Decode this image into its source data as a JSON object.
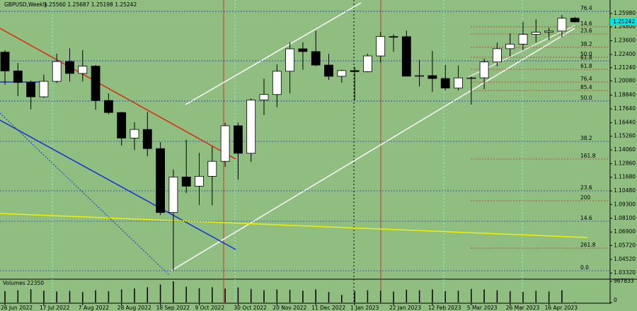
{
  "chart_data": {
    "type": "candlestick",
    "title": "GBPUSD,Weekly",
    "ohlc_label": "1.25560 1.25687 1.25198 1.25242",
    "categories": [
      "26 Jun 2022",
      null,
      null,
      "17 Jul 2022",
      null,
      null,
      "7 Aug 2022",
      null,
      null,
      "28 Aug 2022",
      null,
      null,
      "18 Sep 2022",
      null,
      null,
      "9 Oct 2022",
      null,
      null,
      "30 Oct 2022",
      null,
      null,
      "20 Nov 2022",
      null,
      null,
      "11 Dec 2022",
      null,
      null,
      "1 Jan 2023",
      null,
      null,
      "22 Jan 2023",
      null,
      null,
      "12 Feb 2023",
      null,
      null,
      "5 Mar 2023",
      null,
      null,
      "26 Mar 2023",
      null,
      null,
      "16 Apr 2023",
      null,
      null
    ],
    "open": [
      1.226,
      1.2096,
      1.1995,
      1.187,
      1.2005,
      1.2178,
      1.2074,
      1.2138,
      1.1838,
      1.1733,
      1.151,
      1.1585,
      1.1418,
      1.086,
      1.117,
      1.109,
      1.1176,
      1.1307,
      1.1617,
      1.1377,
      1.1842,
      1.189,
      1.2093,
      1.2289,
      1.2265,
      1.2147,
      1.2049,
      1.2099,
      1.209,
      1.2227,
      1.2396,
      1.2395,
      1.205,
      1.2055,
      1.203,
      1.1946,
      1.2035,
      1.2036,
      1.2174,
      1.229,
      1.233,
      1.2415,
      1.2434,
      1.2444,
      1.2556
    ],
    "high": [
      1.2276,
      1.2165,
      1.2011,
      1.2064,
      1.2246,
      1.2294,
      1.2277,
      1.2147,
      1.19,
      1.174,
      1.1648,
      1.1738,
      1.1475,
      1.1235,
      1.1495,
      1.138,
      1.1436,
      1.1645,
      1.1645,
      1.1855,
      1.2028,
      1.2153,
      1.2345,
      1.2345,
      1.2446,
      1.2245,
      1.2106,
      1.213,
      1.2246,
      1.2436,
      1.2416,
      1.2448,
      1.2193,
      1.227,
      1.2148,
      1.2144,
      1.205,
      1.2203,
      1.2343,
      1.2424,
      1.2525,
      1.2546,
      1.2474,
      1.2584,
      1.25687
    ],
    "low": [
      1.1976,
      1.1876,
      1.176,
      1.186,
      1.199,
      1.2003,
      1.2004,
      1.1757,
      1.1717,
      1.1444,
      1.1406,
      1.1351,
      1.0838,
      1.035,
      1.103,
      1.0924,
      1.0922,
      1.1258,
      1.1147,
      1.1303,
      1.1711,
      1.178,
      1.19,
      1.2106,
      1.2138,
      1.2018,
      1.1992,
      1.1841,
      1.2084,
      1.217,
      1.2263,
      1.2048,
      1.1961,
      1.1914,
      1.1927,
      1.1925,
      1.1802,
      1.1937,
      1.2137,
      1.222,
      1.2275,
      1.2345,
      1.2367,
      1.239,
      1.25198
    ],
    "close": [
      1.2096,
      1.1995,
      1.187,
      1.2005,
      1.2178,
      1.2074,
      1.2138,
      1.1838,
      1.1733,
      1.151,
      1.1585,
      1.1418,
      1.086,
      1.117,
      1.109,
      1.1176,
      1.1307,
      1.1617,
      1.1377,
      1.1842,
      1.189,
      1.2093,
      1.2289,
      1.2265,
      1.2147,
      1.2049,
      1.2099,
      1.209,
      1.2227,
      1.2396,
      1.2395,
      1.205,
      1.2055,
      1.203,
      1.1946,
      1.2035,
      1.2036,
      1.2174,
      1.229,
      1.233,
      1.2415,
      1.2434,
      1.2444,
      1.2556,
      1.25242
    ],
    "up_color": "#ffffff",
    "down_color": "#000000",
    "ylim": [
      1.0278,
      1.2715
    ],
    "yticks": [
      {
        "value": 1.2598,
        "label": "1.25980"
      },
      {
        "value": 1.248,
        "label": "1.24800"
      },
      {
        "value": 1.236,
        "label": "1.23600"
      },
      {
        "value": 1.224,
        "label": "1.22400"
      },
      {
        "value": 1.2124,
        "label": "1.21240"
      },
      {
        "value": 1.2008,
        "label": "1.20080"
      },
      {
        "value": 1.1884,
        "label": "1.18840"
      },
      {
        "value": 1.1764,
        "label": "1.17640"
      },
      {
        "value": 1.1644,
        "label": "1.16440"
      },
      {
        "value": 1.1526,
        "label": "1.15260"
      },
      {
        "value": 1.1406,
        "label": "1.14060"
      },
      {
        "value": 1.1286,
        "label": "1.12860"
      },
      {
        "value": 1.1168,
        "label": "1.11680"
      },
      {
        "value": 1.1048,
        "label": "1.10480"
      },
      {
        "value": 1.093,
        "label": "1.09300"
      },
      {
        "value": 1.081,
        "label": "1.08100"
      },
      {
        "value": 1.069,
        "label": "1.06900"
      },
      {
        "value": 1.0572,
        "label": "1.05720"
      },
      {
        "value": 1.0452,
        "label": "1.04520"
      },
      {
        "value": 1.0332,
        "label": "1.03320"
      }
    ],
    "last_price": {
      "value": 1.25242,
      "label": "1.25242"
    },
    "levels": [
      {
        "text": "76.4",
        "level": 1.2616,
        "color": "#1f3fbf"
      },
      {
        "text": "14.6",
        "level": 1.2481,
        "color": "#c0392b"
      },
      {
        "text": "23.6",
        "level": 1.2419,
        "color": "#c0392b"
      },
      {
        "text": "38.2",
        "level": 1.2302,
        "color": "#c0392b"
      },
      {
        "text": "50.0",
        "level": 1.2215,
        "color": "#c0392b"
      },
      {
        "text": "61.8",
        "level": 1.2184,
        "color": "#1f3fbf"
      },
      {
        "text": "61.8",
        "level": 1.211,
        "color": "#c0392b"
      },
      {
        "text": "76.4",
        "level": 1.1999,
        "color": "#c0392b"
      },
      {
        "text": "85.4",
        "level": 1.1925,
        "color": "#c0392b"
      },
      {
        "text": "50.0",
        "level": 1.1833,
        "color": "#1f3fbf"
      },
      {
        "text": "38.2",
        "level": 1.1481,
        "color": "#1f3fbf"
      },
      {
        "text": "161.8",
        "level": 1.1327,
        "color": "#c0392b"
      },
      {
        "text": "23.6",
        "level": 1.1049,
        "color": "#1f3fbf"
      },
      {
        "text": "200",
        "level": 1.0963,
        "color": "#c0392b"
      },
      {
        "text": "14.6",
        "level": 1.0784,
        "color": "#1f3fbf"
      },
      {
        "text": "261.8",
        "level": 1.0549,
        "color": "#c0392b"
      },
      {
        "text": "0.0",
        "level": 1.0352,
        "color": "#1f3fbf"
      }
    ],
    "volume": {
      "title": "Volumes 22350",
      "values": [
        520000,
        560000,
        610000,
        540000,
        500000,
        530000,
        480000,
        560000,
        520000,
        600000,
        640000,
        700000,
        820000,
        967833,
        720000,
        650000,
        700000,
        640000,
        690000,
        620000,
        560000,
        600000,
        580000,
        540000,
        600000,
        480000,
        350000,
        520000,
        560000,
        540000,
        500000,
        580000,
        560000,
        600000,
        520000,
        540000,
        620000,
        600000,
        560000,
        520000,
        480000,
        540000,
        500000,
        560000,
        22350
      ],
      "ylim": [
        0,
        967833
      ],
      "yticks": [
        0,
        967833
      ],
      "color": "#000000"
    }
  }
}
